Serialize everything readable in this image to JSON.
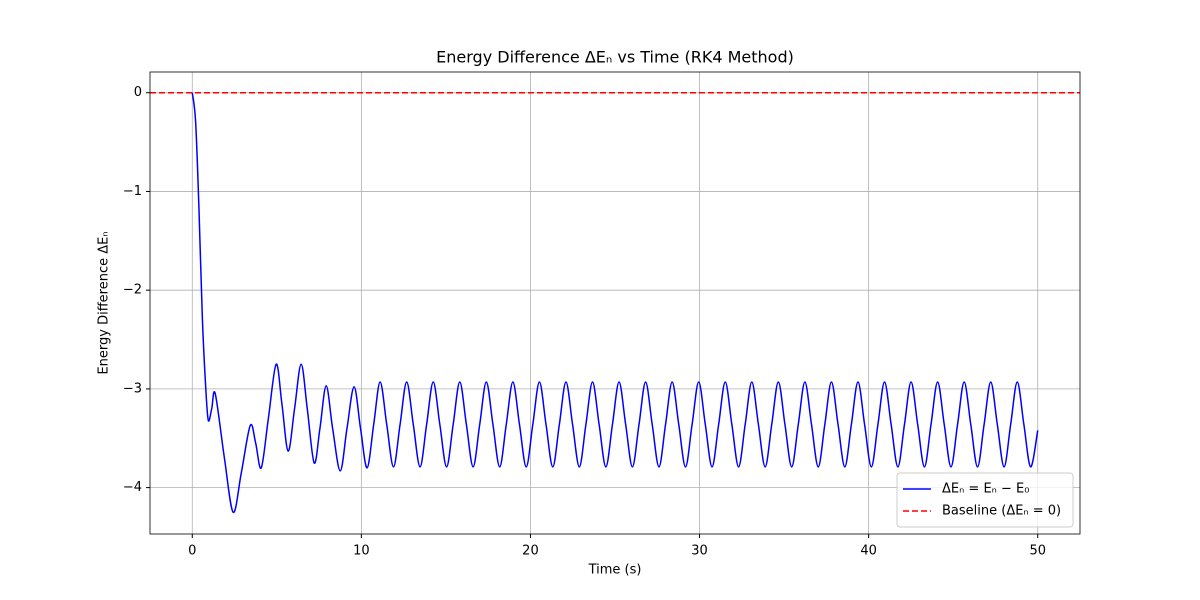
{
  "chart_data": {
    "type": "line",
    "title": "Energy Difference ΔEₙ vs Time (RK4 Method)",
    "x_label": "Time (s)",
    "y_label": "Energy Difference ΔEₙ",
    "xlim": [
      -2.5,
      52.5
    ],
    "ylim": [
      -4.47,
      0.21
    ],
    "xticks": [
      0,
      10,
      20,
      30,
      40,
      50
    ],
    "yticks": [
      {
        "value": -4,
        "label": "−4"
      },
      {
        "value": -3,
        "label": "−3"
      },
      {
        "value": -2,
        "label": "−2"
      },
      {
        "value": -1,
        "label": "−1"
      },
      0
    ],
    "grid": true,
    "legend": "lower right",
    "series": [
      {
        "name": "ΔEₙ = Eₙ − E₀",
        "color": "#0000ff",
        "x": [
          0,
          0.2,
          0.4,
          0.6,
          0.8,
          0.95,
          1.15,
          1.36,
          1.9,
          2.42,
          2.9,
          3.43,
          3.75,
          4.08,
          4.5,
          4.96,
          5.3,
          5.67,
          6.05,
          6.44,
          6.8,
          7.21,
          7.55,
          7.92,
          8.3,
          8.75,
          9.15,
          9.57,
          9.95,
          10.34,
          10.73,
          11.11,
          11.5,
          11.9,
          12.29,
          12.68,
          13.07,
          13.47,
          13.86,
          14.25,
          14.64,
          15.04,
          15.43,
          15.82,
          16.21,
          16.61,
          17.0,
          17.39,
          17.78,
          18.18,
          18.57,
          18.96,
          19.35,
          19.75,
          20.14,
          20.53,
          20.92,
          21.32,
          21.71,
          22.1,
          22.49,
          22.89,
          23.28,
          23.67,
          24.06,
          24.46,
          24.85,
          25.24,
          25.63,
          26.03,
          26.42,
          26.81,
          27.2,
          27.6,
          27.99,
          28.38,
          28.77,
          29.17,
          29.56,
          29.95,
          30.34,
          30.74,
          31.13,
          31.52,
          31.91,
          32.31,
          32.7,
          33.09,
          33.48,
          33.88,
          34.27,
          34.66,
          35.05,
          35.45,
          35.84,
          36.23,
          36.62,
          37.02,
          37.41,
          37.8,
          38.19,
          38.59,
          38.98,
          39.37,
          39.76,
          40.16,
          40.55,
          40.94,
          41.33,
          41.73,
          42.12,
          42.51,
          42.9,
          43.3,
          43.69,
          44.08,
          44.47,
          44.87,
          45.26,
          45.65,
          46.04,
          46.44,
          46.83,
          47.22,
          47.61,
          48.01,
          48.4,
          48.79,
          49.18,
          49.58,
          50
        ],
        "values": [
          0,
          -0.3,
          -1.2,
          -2.3,
          -3.0,
          -3.32,
          -3.2,
          -3.05,
          -3.7,
          -4.25,
          -3.85,
          -3.37,
          -3.55,
          -3.8,
          -3.3,
          -2.75,
          -3.15,
          -3.63,
          -3.2,
          -2.75,
          -3.2,
          -3.75,
          -3.4,
          -2.97,
          -3.4,
          -3.83,
          -3.4,
          -2.98,
          -3.4,
          -3.8,
          -3.36,
          -2.93,
          -3.36,
          -3.79,
          -3.36,
          -2.93,
          -3.36,
          -3.79,
          -3.36,
          -2.93,
          -3.36,
          -3.79,
          -3.36,
          -2.93,
          -3.36,
          -3.79,
          -3.36,
          -2.93,
          -3.36,
          -3.79,
          -3.36,
          -2.93,
          -3.36,
          -3.79,
          -3.36,
          -2.93,
          -3.36,
          -3.79,
          -3.36,
          -2.93,
          -3.36,
          -3.79,
          -3.36,
          -2.93,
          -3.36,
          -3.79,
          -3.36,
          -2.93,
          -3.36,
          -3.79,
          -3.36,
          -2.93,
          -3.36,
          -3.79,
          -3.36,
          -2.93,
          -3.36,
          -3.79,
          -3.36,
          -2.93,
          -3.36,
          -3.79,
          -3.36,
          -2.93,
          -3.36,
          -3.79,
          -3.36,
          -2.93,
          -3.36,
          -3.79,
          -3.36,
          -2.93,
          -3.36,
          -3.79,
          -3.36,
          -2.93,
          -3.36,
          -3.79,
          -3.36,
          -2.93,
          -3.36,
          -3.79,
          -3.36,
          -2.93,
          -3.36,
          -3.79,
          -3.36,
          -2.93,
          -3.36,
          -3.79,
          -3.36,
          -2.93,
          -3.36,
          -3.79,
          -3.36,
          -2.93,
          -3.36,
          -3.79,
          -3.36,
          -2.93,
          -3.36,
          -3.79,
          -3.36,
          -2.93,
          -3.36,
          -3.79,
          -3.36,
          -2.93,
          -3.36,
          -3.79,
          -3.42
        ]
      }
    ],
    "hlines": [
      {
        "name": "Baseline (ΔEₙ = 0)",
        "color": "#ff0000",
        "value": 0,
        "dashed": true
      }
    ]
  }
}
